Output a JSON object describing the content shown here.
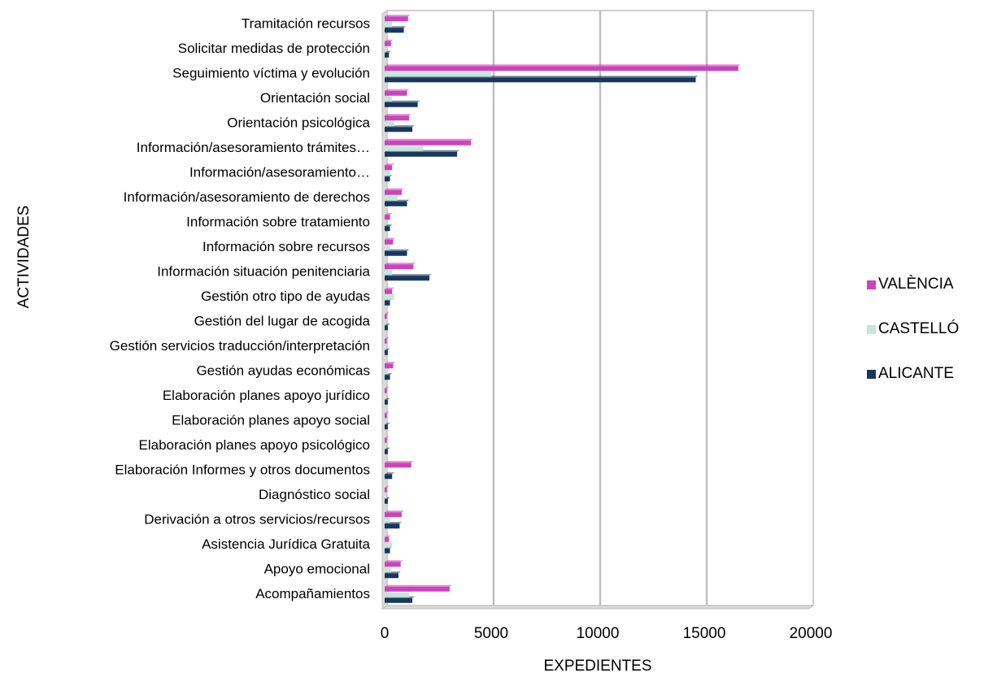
{
  "chart_data": {
    "type": "bar",
    "orientation": "horizontal",
    "title": "",
    "xlabel": "EXPEDIENTES",
    "ylabel": "ACTIVIDADES",
    "xlim": [
      0,
      20000
    ],
    "x_ticks": [
      "0",
      "5000",
      "10000",
      "15000",
      "20000"
    ],
    "grid": "vertical gridlines",
    "legend_position": "right",
    "categories": [
      "Acompañamientos",
      "Apoyo emocional",
      "Asistencia Jurídica Gratuita",
      "Derivación a otros servicios/recursos",
      "Diagnóstico social",
      "Elaboración Informes y otros documentos",
      "Elaboración planes apoyo psicológico",
      "Elaboración planes apoyo social",
      "Elaboración planes apoyo jurídico",
      "Gestión ayudas económicas",
      "Gestión servicios traducción/interpretación",
      "Gestión del lugar de acogida",
      "Gestión otro tipo de ayudas",
      "Información situación penitenciaria",
      "Información sobre recursos",
      "Información sobre tratamiento",
      "Información/asesoramiento de derechos",
      "Información/asesoramiento…",
      "Información/asesoramiento trámites…",
      "Orientación psicológica",
      "Orientación social",
      "Seguimiento víctima y evolución",
      "Solicitar medidas de protección",
      "Tramitación recursos"
    ],
    "series": [
      {
        "name": "ALICANTE",
        "color": "#17375e",
        "values": [
          1300,
          650,
          250,
          700,
          150,
          350,
          150,
          150,
          150,
          250,
          150,
          150,
          250,
          2100,
          1050,
          250,
          1050,
          250,
          3400,
          1300,
          1550,
          14600,
          200,
          900
        ]
      },
      {
        "name": "CASTELLÓ",
        "color": "#c6e5db",
        "values": [
          1150,
          300,
          350,
          250,
          100,
          100,
          80,
          80,
          80,
          150,
          80,
          80,
          450,
          350,
          250,
          100,
          600,
          250,
          1800,
          450,
          350,
          5000,
          100,
          350
        ]
      },
      {
        "name": "VALÈNCIA",
        "color": "#cc44bb",
        "values": [
          3050,
          750,
          200,
          800,
          100,
          1250,
          100,
          100,
          100,
          400,
          100,
          100,
          350,
          1350,
          400,
          250,
          800,
          350,
          4050,
          1150,
          1050,
          16600,
          300,
          1100
        ]
      }
    ]
  }
}
